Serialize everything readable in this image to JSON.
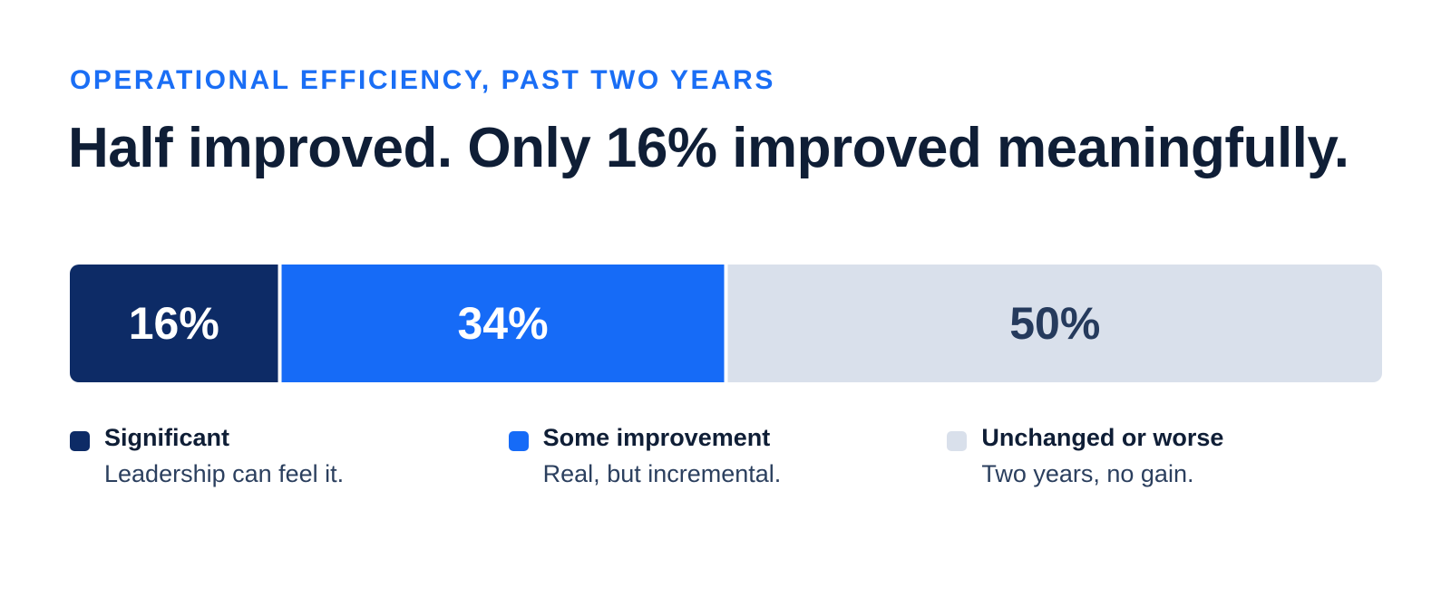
{
  "chart_data": {
    "type": "stacked-bar",
    "subtitle": "OPERATIONAL EFFICIENCY, PAST TWO YEARS",
    "title": "Half improved. Only 16% improved meaningfully.",
    "series": [
      {
        "name": "Significant",
        "description": "Leadership can feel it.",
        "color": "#0d2b66",
        "values": [
          16
        ],
        "value_labels": [
          "16%"
        ]
      },
      {
        "name": "Some improvement",
        "description": "Real, but incremental.",
        "color": "#166bf7",
        "values": [
          34
        ],
        "value_labels": [
          "34%"
        ]
      },
      {
        "name": "Unchanged or worse",
        "description": "Two years, no gain.",
        "color": "#d9e0eb",
        "values": [
          50
        ],
        "value_labels": [
          "50%"
        ]
      }
    ]
  }
}
